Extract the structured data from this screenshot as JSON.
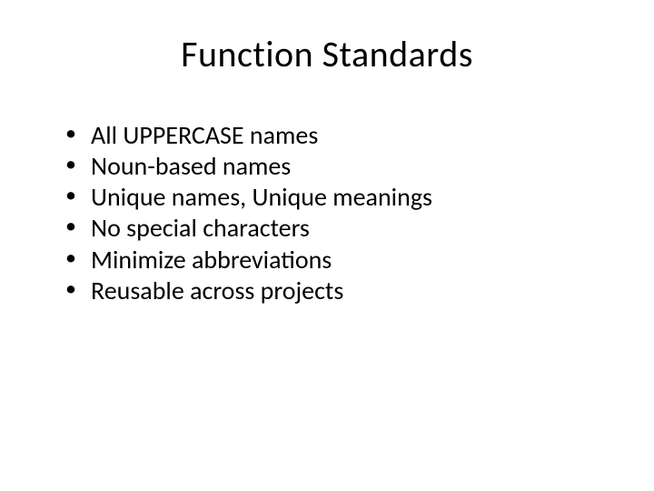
{
  "slide": {
    "title": "Function Standards",
    "bullets": [
      "All UPPERCASE names",
      "Noun-based names",
      "Unique names, Unique meanings",
      "No special characters",
      "Minimize abbreviations",
      "Reusable across projects"
    ]
  },
  "styling": {
    "background_color": "#ffffff",
    "text_color": "#000000",
    "title_fontsize": 40,
    "bullet_fontsize": 28,
    "font_family": "Calibri"
  }
}
